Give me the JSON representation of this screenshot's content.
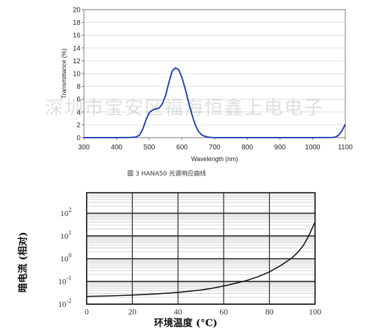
{
  "chart_data": [
    {
      "type": "line",
      "title": "",
      "caption": "圖 3   HANA50 光谱响应曲线",
      "xlabel": "Wavelength (nm)",
      "ylabel": "Transmittance (%)",
      "xlim": [
        300,
        1100
      ],
      "ylim": [
        0,
        20
      ],
      "x_ticks": [
        "300",
        "400",
        "500",
        "600",
        "700",
        "800",
        "900",
        "1000",
        "1100"
      ],
      "y_ticks": [
        "0",
        "2",
        "4",
        "6",
        "8",
        "10",
        "12",
        "14",
        "16",
        "18",
        "20"
      ],
      "grid": true,
      "line_color": "#1f3fae",
      "series": [
        {
          "x": [
            300,
            400,
            440,
            460,
            470,
            480,
            490,
            500,
            510,
            520,
            530,
            540,
            550,
            560,
            570,
            580,
            590,
            600,
            610,
            620,
            630,
            640,
            650,
            660,
            670,
            680,
            690,
            700,
            720,
            800,
            900,
            1000,
            1060,
            1070,
            1080,
            1090,
            1100
          ],
          "values": [
            0,
            0,
            0.02,
            0.1,
            0.4,
            1.3,
            2.8,
            3.9,
            4.3,
            4.5,
            4.6,
            5.3,
            6.6,
            8.6,
            10.4,
            10.9,
            10.6,
            9.4,
            7.6,
            5.6,
            3.7,
            2.1,
            1.0,
            0.45,
            0.2,
            0.08,
            0.03,
            0.01,
            0,
            0,
            0,
            0,
            0.02,
            0.1,
            0.4,
            1.1,
            2.1
          ]
        }
      ]
    },
    {
      "type": "line",
      "title": "",
      "xlabel": "环境温度 (°C)",
      "ylabel": "暗电流 (相对)",
      "xlim": [
        0,
        100
      ],
      "ylim_log10": [
        -2,
        2.9
      ],
      "y_scale": "log",
      "x_ticks": [
        "0",
        "20",
        "40",
        "60",
        "80",
        "100"
      ],
      "y_ticks": [
        {
          "base": "10",
          "exp": "2",
          "log": 2
        },
        {
          "base": "10",
          "exp": "1",
          "log": 1
        },
        {
          "base": "10",
          "exp": "0",
          "log": 0
        },
        {
          "base": "10",
          "exp": "-1",
          "log": -1
        },
        {
          "base": "10",
          "exp": "-2",
          "log": -2
        }
      ],
      "grid": true,
      "line_color": "#111111",
      "series": [
        {
          "x": [
            0,
            10,
            20,
            30,
            40,
            50,
            55,
            60,
            65,
            70,
            75,
            80,
            85,
            90,
            93,
            95,
            97,
            98,
            99,
            100
          ],
          "values": [
            0.022,
            0.023,
            0.025,
            0.028,
            0.033,
            0.042,
            0.05,
            0.063,
            0.082,
            0.11,
            0.16,
            0.26,
            0.5,
            1.1,
            2.2,
            4,
            9,
            15,
            25,
            40
          ]
        }
      ]
    }
  ],
  "watermark": "深圳市宝安区福海恒鑫上电电子"
}
